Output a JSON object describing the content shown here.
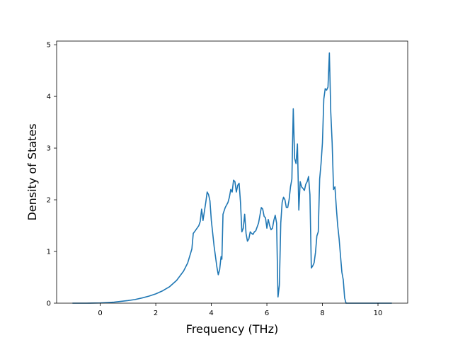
{
  "chart_data": {
    "type": "line",
    "title": "",
    "xlabel": "Frequency (THz)",
    "ylabel": "Density of States",
    "xlim": [
      -1.57,
      11.07
    ],
    "ylim": [
      0,
      5.07
    ],
    "xticks": [
      0,
      2,
      4,
      6,
      8,
      10
    ],
    "yticks": [
      0,
      1,
      2,
      3,
      4,
      5
    ],
    "grid": false,
    "colors": {
      "line": "#1f77b4",
      "axis": "#000000",
      "background": "#ffffff"
    },
    "series": [
      {
        "name": "",
        "x": [
          -1.0,
          -0.5,
          0.0,
          0.25,
          0.5,
          0.75,
          1.0,
          1.25,
          1.5,
          1.75,
          2.0,
          2.25,
          2.5,
          2.75,
          3.0,
          3.15,
          3.3,
          3.35,
          3.42,
          3.55,
          3.6,
          3.65,
          3.7,
          3.8,
          3.85,
          3.9,
          3.95,
          4.0,
          4.1,
          4.15,
          4.2,
          4.25,
          4.3,
          4.35,
          4.38,
          4.42,
          4.5,
          4.55,
          4.6,
          4.65,
          4.7,
          4.75,
          4.8,
          4.85,
          4.9,
          4.95,
          5.0,
          5.05,
          5.1,
          5.15,
          5.2,
          5.25,
          5.3,
          5.35,
          5.4,
          5.45,
          5.5,
          5.55,
          5.6,
          5.7,
          5.8,
          5.85,
          5.9,
          5.95,
          6.0,
          6.05,
          6.1,
          6.15,
          6.2,
          6.25,
          6.3,
          6.35,
          6.4,
          6.45,
          6.5,
          6.55,
          6.6,
          6.65,
          6.7,
          6.75,
          6.8,
          6.85,
          6.9,
          6.95,
          7.0,
          7.05,
          7.1,
          7.15,
          7.2,
          7.25,
          7.3,
          7.35,
          7.4,
          7.45,
          7.5,
          7.55,
          7.6,
          7.65,
          7.7,
          7.75,
          7.8,
          7.85,
          7.9,
          7.95,
          8.0,
          8.05,
          8.1,
          8.15,
          8.2,
          8.25,
          8.3,
          8.35,
          8.4,
          8.45,
          8.5,
          8.55,
          8.6,
          8.65,
          8.7,
          8.75,
          8.8,
          8.85,
          8.9,
          8.95,
          9.0,
          9.05,
          9.1,
          9.2,
          9.3,
          9.4,
          9.5,
          9.55,
          9.6,
          10.0,
          10.5
        ],
        "y": [
          0,
          0,
          0.005,
          0.012,
          0.02,
          0.035,
          0.05,
          0.07,
          0.1,
          0.135,
          0.18,
          0.24,
          0.32,
          0.44,
          0.62,
          0.78,
          1.05,
          1.35,
          1.4,
          1.5,
          1.58,
          1.82,
          1.6,
          1.95,
          2.15,
          2.1,
          1.98,
          1.6,
          1.1,
          0.9,
          0.7,
          0.55,
          0.65,
          0.9,
          0.85,
          1.72,
          1.85,
          1.9,
          1.95,
          2.05,
          2.2,
          2.15,
          2.38,
          2.35,
          2.15,
          2.28,
          2.32,
          1.95,
          1.38,
          1.45,
          1.72,
          1.35,
          1.2,
          1.24,
          1.38,
          1.35,
          1.33,
          1.38,
          1.4,
          1.55,
          1.85,
          1.82,
          1.68,
          1.65,
          1.45,
          1.62,
          1.5,
          1.42,
          1.45,
          1.6,
          1.7,
          1.55,
          0.12,
          0.35,
          1.55,
          1.95,
          2.05,
          2.0,
          1.85,
          1.85,
          2.0,
          2.25,
          2.4,
          3.76,
          2.8,
          2.7,
          3.08,
          1.8,
          2.35,
          2.25,
          2.22,
          2.18,
          2.3,
          2.35,
          2.45,
          2.1,
          0.68,
          0.72,
          0.78,
          0.98,
          1.3,
          1.38,
          2.4,
          2.7,
          3.1,
          3.95,
          4.15,
          4.12,
          4.18,
          4.84,
          3.7,
          3.1,
          2.2,
          2.25,
          1.85,
          1.5,
          1.25,
          0.92,
          0.6,
          0.45,
          0.1,
          0,
          0,
          0,
          0,
          0,
          0,
          0,
          0,
          0,
          0,
          0,
          0,
          0,
          0
        ]
      }
    ]
  }
}
